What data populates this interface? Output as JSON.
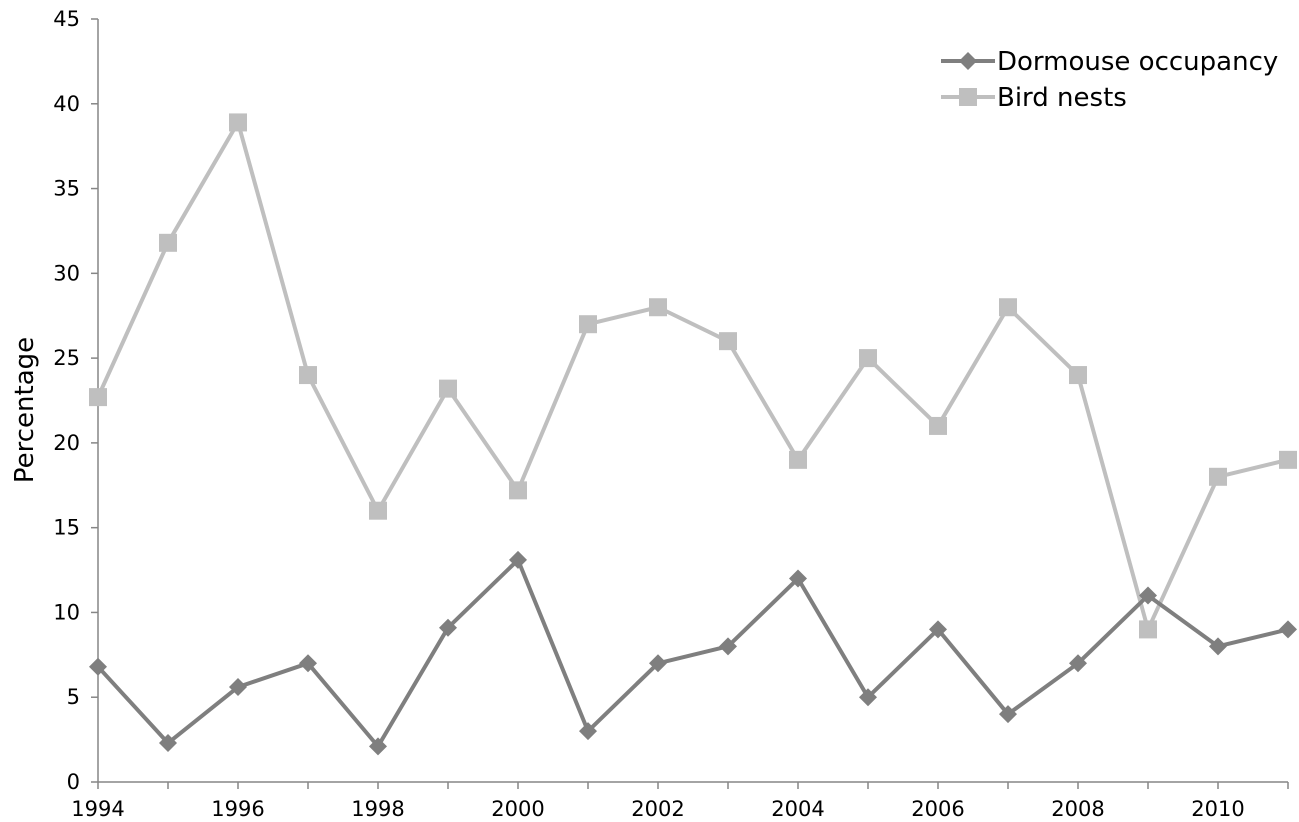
{
  "chart_data": {
    "type": "line",
    "title": "",
    "xlabel": "",
    "ylabel": "Percentage",
    "x": [
      1994,
      1995,
      1996,
      1997,
      1998,
      1999,
      2000,
      2001,
      2002,
      2003,
      2004,
      2005,
      2006,
      2007,
      2008,
      2009,
      2010,
      2011
    ],
    "xlim": [
      1994,
      2011
    ],
    "ylim": [
      0,
      45
    ],
    "x_tick_labels": [
      "1994",
      "1996",
      "1998",
      "2000",
      "2002",
      "2004",
      "2006",
      "2008",
      "2010"
    ],
    "y_tick_labels": [
      "0",
      "5",
      "10",
      "15",
      "20",
      "25",
      "30",
      "35",
      "40",
      "45"
    ],
    "grid": false,
    "legend_position": "top-right",
    "series": [
      {
        "name": "Dormouse occupancy",
        "color": "#7f7f7f",
        "marker": "diamond",
        "values": [
          6.8,
          2.3,
          5.6,
          7.0,
          2.1,
          9.1,
          13.1,
          3.0,
          7.0,
          8.0,
          12.0,
          5.0,
          9.0,
          4.0,
          7.0,
          11.0,
          8.0,
          9.0
        ]
      },
      {
        "name": "Bird nests",
        "color": "#bfbfbf",
        "marker": "square",
        "values": [
          22.7,
          31.8,
          38.9,
          24.0,
          16.0,
          23.2,
          17.2,
          27.0,
          28.0,
          26.0,
          19.0,
          25.0,
          21.0,
          28.0,
          24.0,
          9.0,
          18.0,
          19.0
        ]
      }
    ]
  }
}
